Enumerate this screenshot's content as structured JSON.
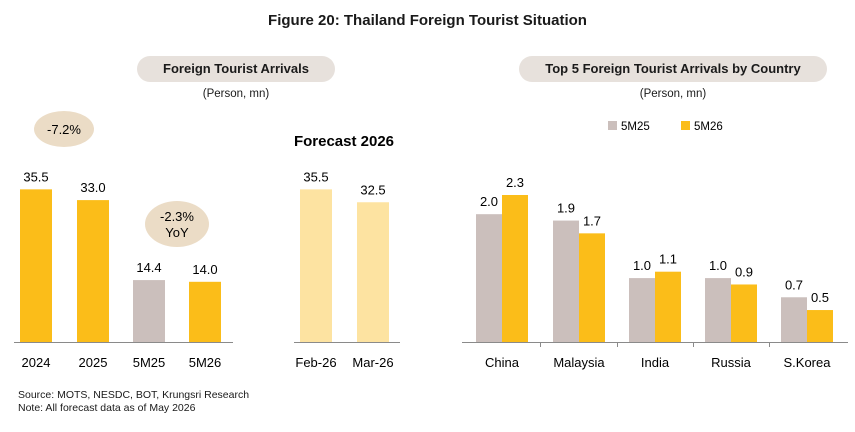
{
  "figure_title": "Figure 20: Thailand Foreign Tourist Situation",
  "footnotes": {
    "source": "Source: MOTS, NESDC, BOT, Krungsri Research",
    "note": "Note: All forecast data as of May 2026"
  },
  "colors": {
    "actual": "#fbbd19",
    "previous": "#cbbfbc",
    "forecast": "#fde3a1",
    "bubble": "#ebdcc6",
    "pill": "#e7e1dc"
  },
  "chart_data": [
    {
      "type": "bar",
      "title": "Foreign Tourist Arrivals",
      "unit_label": "(Person, mn)",
      "categories": [
        "2024",
        "2025",
        "5M25",
        "5M26",
        "Feb-26",
        "Mar-26"
      ],
      "values": [
        35.5,
        33.0,
        14.4,
        14.0,
        35.5,
        32.5
      ],
      "value_labels": [
        "35.5",
        "33.0",
        "14.4",
        "14.0",
        "35.5",
        "32.5"
      ],
      "bar_types": [
        "actual",
        "actual",
        "previous",
        "actual",
        "forecast",
        "forecast"
      ],
      "group_label": "Forecast 2026",
      "annotations": [
        "-7.2%",
        "-2.3%\nYoY"
      ],
      "ylim": [
        0,
        40
      ]
    },
    {
      "type": "bar",
      "title": "Top 5 Foreign Tourist Arrivals by Country",
      "unit_label": "(Person, mn)",
      "categories": [
        "China",
        "Malaysia",
        "India",
        "Russia",
        "S.Korea"
      ],
      "series": [
        {
          "name": "5M25",
          "values": [
            2.0,
            1.9,
            1.0,
            1.0,
            0.7
          ],
          "labels": [
            "2.0",
            "1.9",
            "1.0",
            "1.0",
            "0.7"
          ]
        },
        {
          "name": "5M26",
          "values": [
            2.3,
            1.7,
            1.1,
            0.9,
            0.5
          ],
          "labels": [
            "2.3",
            "1.7",
            "1.1",
            "0.9",
            "0.5"
          ]
        }
      ],
      "legend": "top-center",
      "ylim": [
        0,
        2.6
      ]
    }
  ]
}
